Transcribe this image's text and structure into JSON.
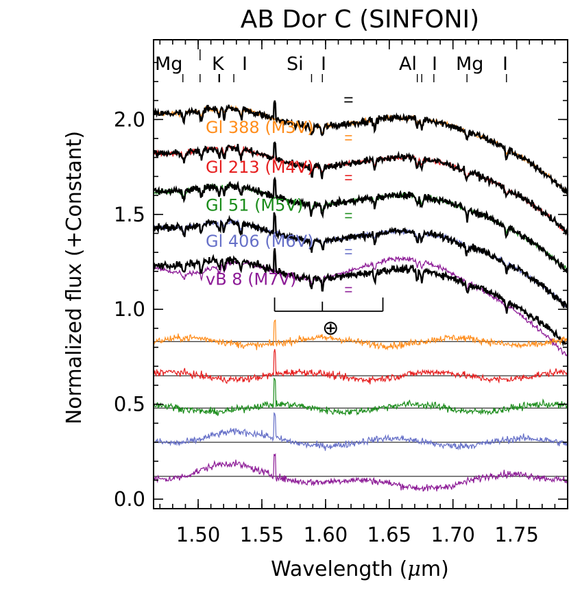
{
  "chart_data": {
    "type": "line",
    "title": "AB Dor C (SINFONI)",
    "xlabel_prefix": "Wavelength (",
    "xlabel_mu": "μ",
    "xlabel_suffix": "m)",
    "ylabel": "Normalized flux (+Constant)",
    "xlim": [
      1.465,
      1.79
    ],
    "ylim": [
      -0.05,
      2.42
    ],
    "xticks": [
      1.5,
      1.55,
      1.6,
      1.65,
      1.7,
      1.75
    ],
    "xtick_labels": [
      "1.50",
      "1.55",
      "1.60",
      "1.65",
      "1.70",
      "1.75"
    ],
    "yticks": [
      0.0,
      0.5,
      1.0,
      1.5,
      2.0
    ],
    "ytick_labels": [
      "0.0",
      "0.5",
      "1.0",
      "1.5",
      "2.0"
    ],
    "target_color": "#000000",
    "series": [
      {
        "name": "Gl 388",
        "sptype": "(M3V)",
        "color": "#ff8c1a",
        "offset": 2.03,
        "residual_baseline": 0.83,
        "error_bar": 0.012
      },
      {
        "name": "Gl 213",
        "sptype": "(M4V)",
        "color": "#e61e1e",
        "offset": 1.82,
        "residual_baseline": 0.65,
        "error_bar": 0.012
      },
      {
        "name": "Gl 51",
        "sptype": "(M5V)",
        "color": "#1a8c1a",
        "offset": 1.62,
        "residual_baseline": 0.48,
        "error_bar": 0.012
      },
      {
        "name": "Gl 406",
        "sptype": "(M6V)",
        "color": "#6670c8",
        "offset": 1.43,
        "residual_baseline": 0.3,
        "error_bar": 0.012
      },
      {
        "name": "vB 8",
        "sptype": "(M7V)",
        "color": "#8c1a96",
        "offset": 1.23,
        "residual_baseline": 0.12,
        "error_bar": 0.012
      }
    ],
    "target_error_bar": 0.02,
    "features": [
      {
        "label": "Mg",
        "wavelengths": [
          1.488,
          1.5015
        ]
      },
      {
        "label": "K",
        "wavelengths": [
          1.5168,
          1.5163
        ]
      },
      {
        "label": "I",
        "wavelengths": [
          1.528
        ]
      },
      {
        "label": "Si",
        "wavelengths": [
          1.589
        ]
      },
      {
        "label": "I",
        "wavelengths": [
          1.5975
        ]
      },
      {
        "label": "Al",
        "wavelengths": [
          1.672,
          1.6755
        ]
      },
      {
        "label": "I",
        "wavelengths": [
          1.685
        ]
      },
      {
        "label": "Mg",
        "wavelengths": [
          1.711
        ]
      },
      {
        "label": "I",
        "wavelengths": [
          1.742
        ]
      }
    ],
    "telluric_symbol": "⊕",
    "telluric_range": [
      1.56,
      1.645
    ],
    "telluric_center": 1.5975
  }
}
